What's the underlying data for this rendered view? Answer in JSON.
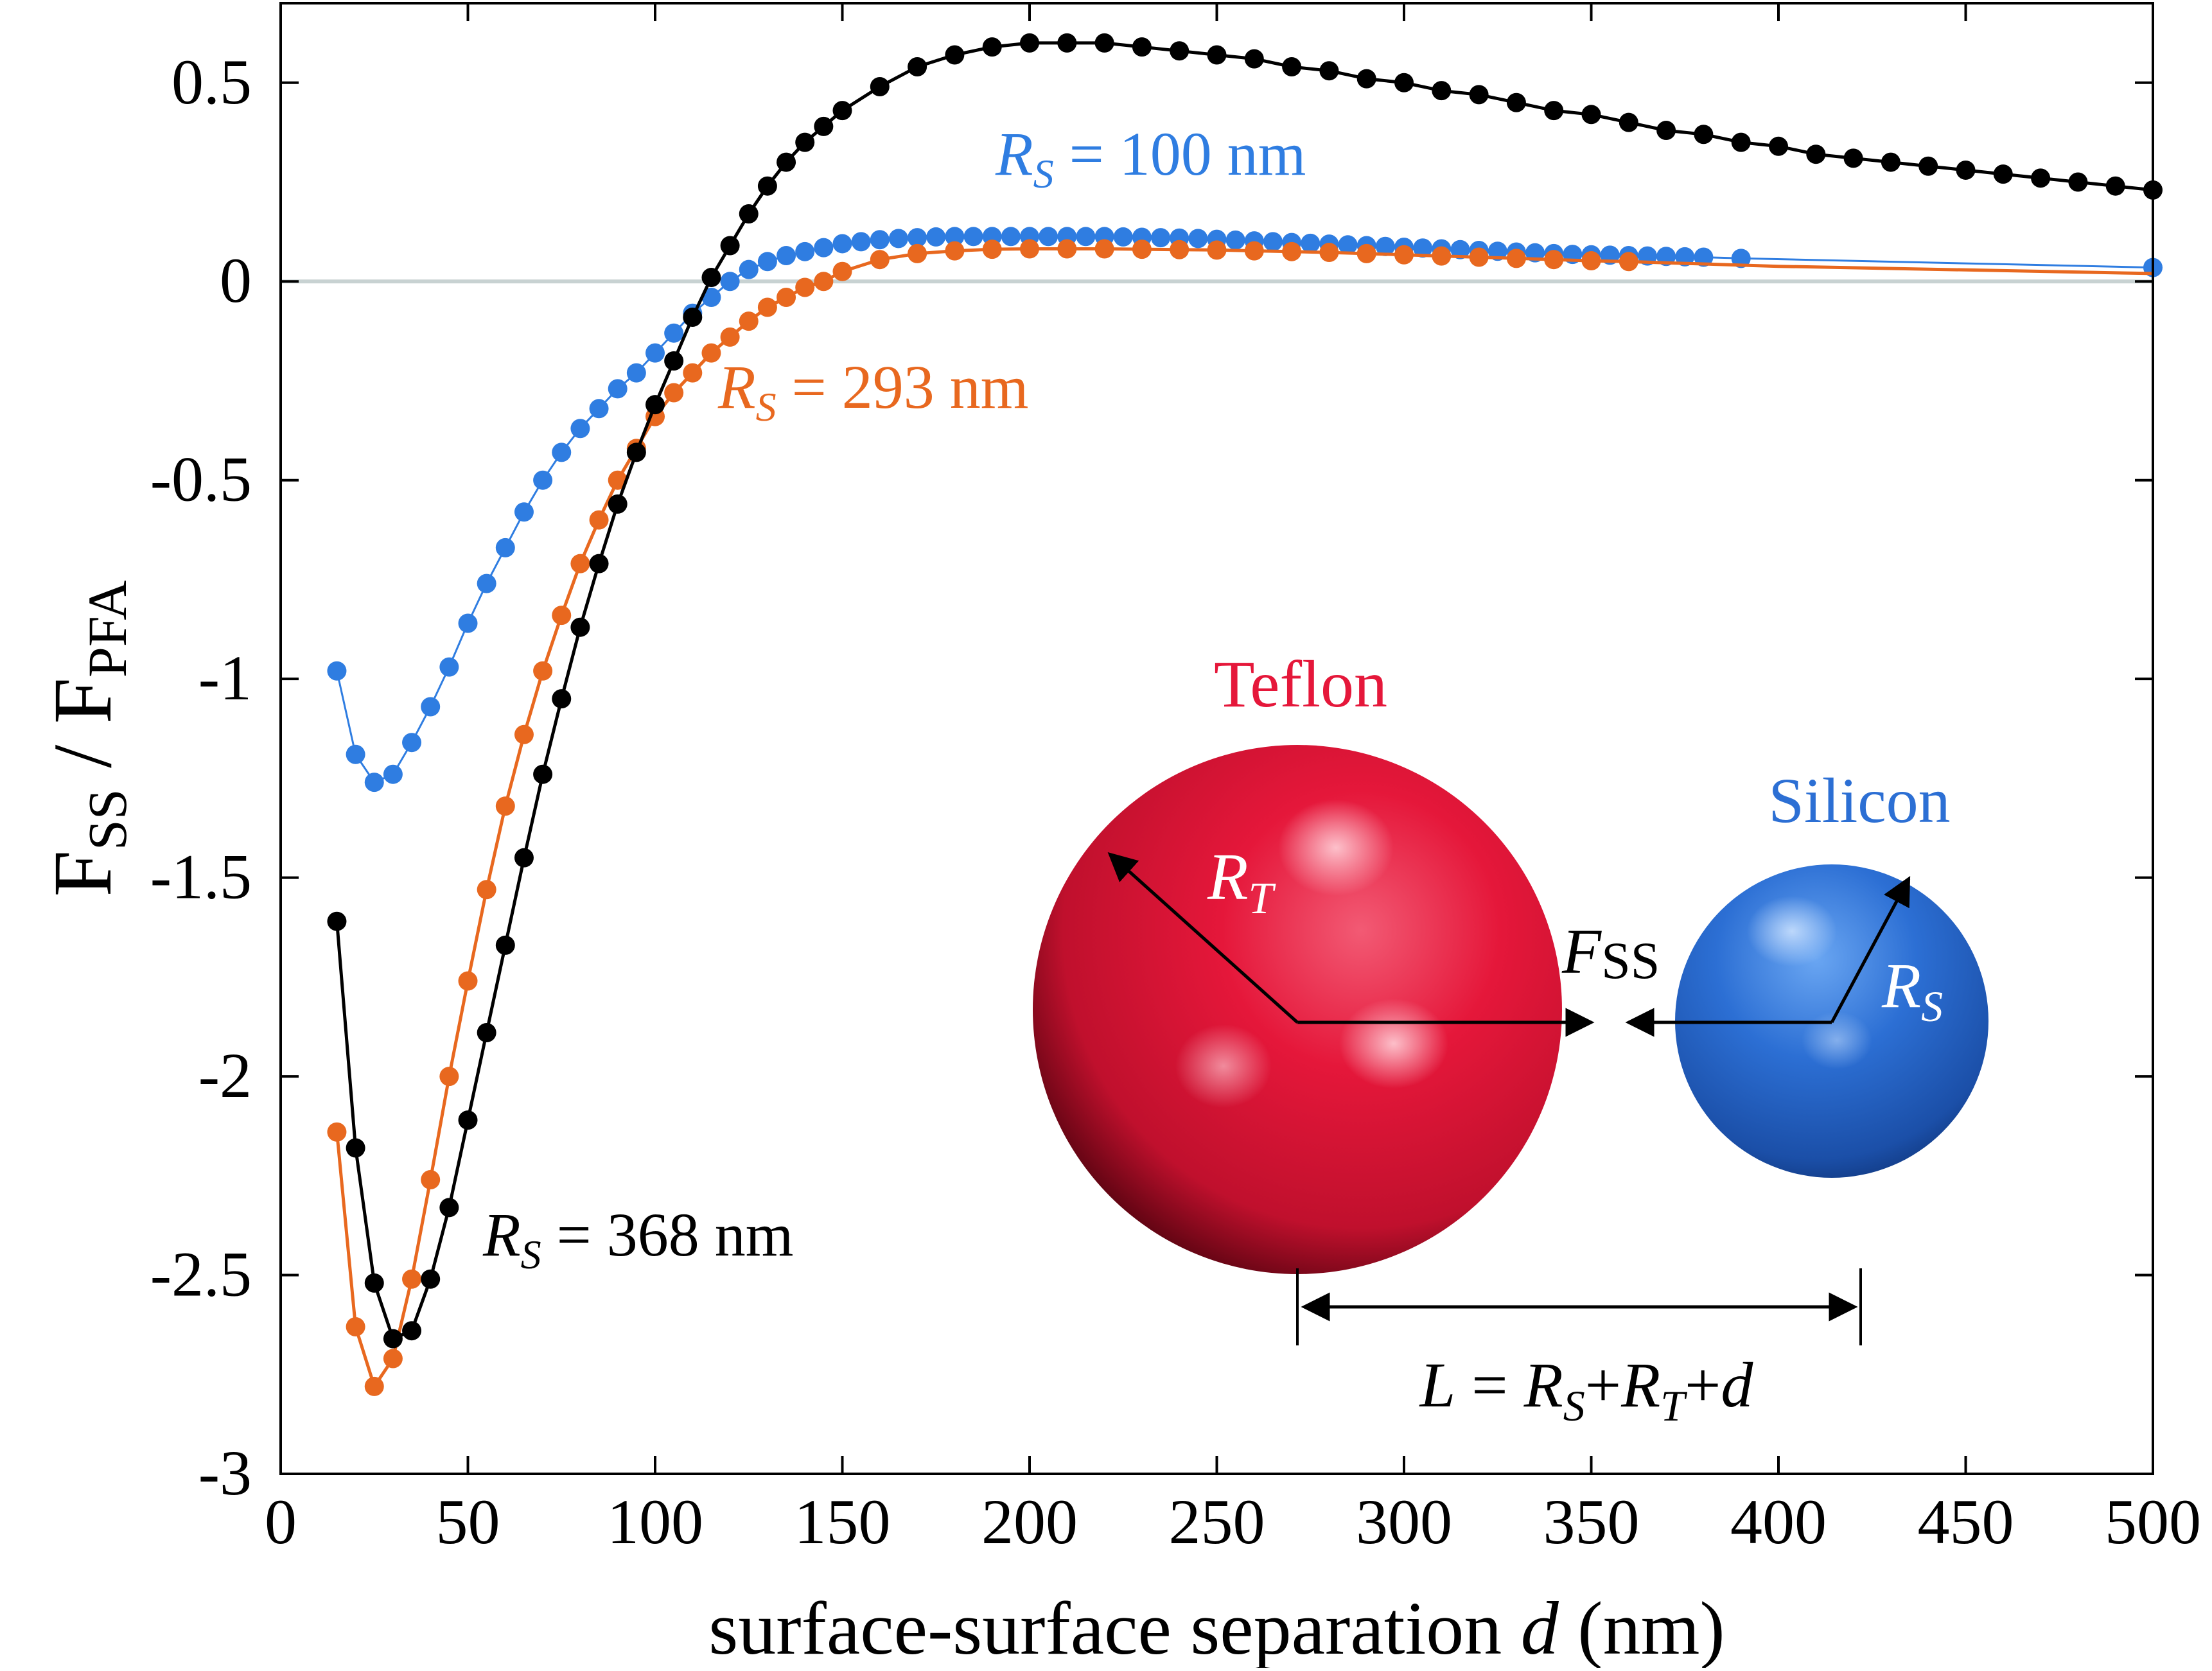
{
  "chart_data": {
    "type": "line",
    "xlabel_main": "surface-surface separation ",
    "xlabel_italic": "d",
    "xlabel_unit": " (nm)",
    "ylabel": {
      "f1": "F",
      "s1": "SS",
      "slash": " / ",
      "f2": "F",
      "s2": "PFA"
    },
    "xlim": [
      0,
      500
    ],
    "ylim": [
      -3,
      0.7
    ],
    "xticks": [
      0,
      50,
      100,
      150,
      200,
      250,
      300,
      350,
      400,
      450,
      500
    ],
    "xtick_labels": [
      "0",
      "50",
      "100",
      "150",
      "200",
      "250",
      "300",
      "350",
      "400",
      "450",
      "500"
    ],
    "yticks": [
      0.5,
      0,
      -0.5,
      -1,
      -1.5,
      -2,
      -2.5,
      -3
    ],
    "ytick_labels": [
      "0.5",
      "0",
      "-0.5",
      "-1",
      "-1.5",
      "-2",
      "-2.5",
      "-3"
    ],
    "zero_line_color": "#c8d2d2",
    "series": [
      {
        "name": "R_S = 100 nm",
        "label": {
          "R": "R",
          "sub": "S",
          "rest": " = 100 nm"
        },
        "color": "#2f7de1",
        "x": [
          15,
          20,
          25,
          30,
          35,
          40,
          45,
          50,
          55,
          60,
          65,
          70,
          75,
          80,
          85,
          90,
          95,
          100,
          105,
          110,
          115,
          120,
          125,
          130,
          135,
          140,
          145,
          150,
          155,
          160,
          165,
          170,
          175,
          180,
          185,
          190,
          195,
          200,
          205,
          210,
          215,
          220,
          225,
          230,
          235,
          240,
          245,
          250,
          255,
          260,
          265,
          270,
          275,
          280,
          285,
          290,
          295,
          300,
          305,
          310,
          315,
          320,
          325,
          330,
          335,
          340,
          345,
          350,
          355,
          360,
          365,
          370,
          375,
          380,
          390,
          500
        ],
        "y": [
          -0.98,
          -1.19,
          -1.26,
          -1.24,
          -1.16,
          -1.07,
          -0.97,
          -0.86,
          -0.76,
          -0.67,
          -0.58,
          -0.5,
          -0.43,
          -0.37,
          -0.32,
          -0.27,
          -0.23,
          -0.18,
          -0.13,
          -0.08,
          -0.04,
          0.0,
          0.03,
          0.05,
          0.065,
          0.075,
          0.085,
          0.095,
          0.1,
          0.105,
          0.108,
          0.11,
          0.112,
          0.113,
          0.113,
          0.113,
          0.113,
          0.113,
          0.113,
          0.113,
          0.113,
          0.113,
          0.112,
          0.111,
          0.11,
          0.109,
          0.108,
          0.106,
          0.104,
          0.102,
          0.1,
          0.098,
          0.096,
          0.094,
          0.092,
          0.09,
          0.088,
          0.086,
          0.084,
          0.082,
          0.08,
          0.078,
          0.076,
          0.074,
          0.072,
          0.07,
          0.068,
          0.067,
          0.066,
          0.065,
          0.064,
          0.063,
          0.062,
          0.061,
          0.058,
          0.035
        ],
        "markers_x": [
          15,
          20,
          25,
          30,
          35,
          40,
          45,
          50,
          55,
          60,
          65,
          70,
          75,
          80,
          85,
          90,
          95,
          100,
          105,
          110,
          115,
          120,
          125,
          130,
          135,
          140,
          145,
          150,
          155,
          160,
          165,
          170,
          175,
          180,
          185,
          190,
          195,
          200,
          205,
          210,
          215,
          220,
          225,
          230,
          235,
          240,
          245,
          250,
          255,
          260,
          265,
          270,
          275,
          280,
          285,
          290,
          295,
          300,
          305,
          310,
          315,
          320,
          325,
          330,
          335,
          340,
          345,
          350,
          355,
          360,
          365,
          370,
          375,
          380,
          390,
          500
        ]
      },
      {
        "name": "R_S = 293 nm",
        "label": {
          "R": "R",
          "sub": "S",
          "rest": " = 293 nm"
        },
        "color": "#e8681f",
        "x": [
          15,
          20,
          25,
          30,
          35,
          40,
          45,
          50,
          55,
          60,
          65,
          70,
          75,
          80,
          85,
          90,
          95,
          100,
          105,
          110,
          115,
          120,
          125,
          130,
          135,
          140,
          145,
          150,
          160,
          170,
          180,
          190,
          200,
          210,
          220,
          230,
          240,
          250,
          260,
          270,
          280,
          290,
          300,
          310,
          320,
          330,
          340,
          350,
          360,
          370,
          380,
          390,
          400,
          500
        ],
        "y": [
          -2.14,
          -2.63,
          -2.78,
          -2.71,
          -2.51,
          -2.26,
          -2.0,
          -1.76,
          -1.53,
          -1.32,
          -1.14,
          -0.98,
          -0.84,
          -0.71,
          -0.6,
          -0.5,
          -0.42,
          -0.34,
          -0.28,
          -0.23,
          -0.18,
          -0.14,
          -0.1,
          -0.065,
          -0.04,
          -0.015,
          0.0,
          0.025,
          0.055,
          0.07,
          0.077,
          0.081,
          0.082,
          0.082,
          0.082,
          0.081,
          0.08,
          0.079,
          0.077,
          0.075,
          0.073,
          0.07,
          0.067,
          0.064,
          0.061,
          0.058,
          0.055,
          0.052,
          0.05,
          0.047,
          0.044,
          0.041,
          0.038,
          0.02
        ],
        "markers_x": [
          15,
          20,
          25,
          30,
          35,
          40,
          45,
          50,
          55,
          60,
          65,
          70,
          75,
          80,
          85,
          90,
          95,
          100,
          105,
          110,
          115,
          120,
          125,
          130,
          135,
          140,
          145,
          150,
          160,
          170,
          180,
          190,
          200,
          210,
          220,
          230,
          240,
          250,
          260,
          270,
          280,
          290,
          300,
          310,
          320,
          330,
          340,
          350,
          360
        ]
      },
      {
        "name": "R_S = 368 nm",
        "label": {
          "R": "R",
          "sub": "S",
          "rest": " = 368 nm"
        },
        "color": "#000000",
        "x": [
          15,
          20,
          25,
          30,
          35,
          40,
          45,
          50,
          55,
          60,
          65,
          70,
          75,
          80,
          85,
          90,
          95,
          100,
          105,
          110,
          115,
          120,
          125,
          130,
          135,
          140,
          145,
          150,
          160,
          170,
          180,
          190,
          200,
          210,
          220,
          230,
          240,
          250,
          260,
          270,
          280,
          290,
          300,
          310,
          320,
          330,
          340,
          350,
          360,
          370,
          380,
          390,
          400,
          410,
          420,
          430,
          440,
          450,
          460,
          470,
          480,
          490,
          500
        ],
        "y": [
          -1.61,
          -2.18,
          -2.52,
          -2.66,
          -2.64,
          -2.51,
          -2.33,
          -2.11,
          -1.89,
          -1.67,
          -1.45,
          -1.24,
          -1.05,
          -0.87,
          -0.71,
          -0.56,
          -0.43,
          -0.31,
          -0.2,
          -0.09,
          0.01,
          0.09,
          0.17,
          0.24,
          0.3,
          0.35,
          0.39,
          0.43,
          0.49,
          0.54,
          0.57,
          0.59,
          0.6,
          0.6,
          0.6,
          0.59,
          0.58,
          0.57,
          0.56,
          0.54,
          0.53,
          0.51,
          0.5,
          0.48,
          0.47,
          0.45,
          0.43,
          0.42,
          0.4,
          0.38,
          0.37,
          0.35,
          0.34,
          0.32,
          0.31,
          0.3,
          0.29,
          0.28,
          0.27,
          0.26,
          0.25,
          0.24,
          0.23
        ],
        "markers_x": [
          15,
          20,
          25,
          30,
          35,
          40,
          45,
          50,
          55,
          60,
          65,
          70,
          75,
          80,
          85,
          90,
          95,
          100,
          105,
          110,
          115,
          120,
          125,
          130,
          135,
          140,
          145,
          150,
          160,
          170,
          180,
          190,
          200,
          210,
          220,
          230,
          240,
          250,
          260,
          270,
          280,
          290,
          300,
          310,
          320,
          330,
          340,
          350,
          360,
          370,
          380,
          390,
          400,
          410,
          420,
          430,
          440,
          450,
          460,
          470,
          480,
          490,
          500
        ]
      }
    ],
    "inset": {
      "teflon_label": "Teflon",
      "silicon_label": "Silicon",
      "teflon_color": "#e5173a",
      "silicon_color": "#2c6fd4",
      "radius_t": {
        "R": "R",
        "sub": "T"
      },
      "radius_s": {
        "R": "R",
        "sub": "S"
      },
      "force": {
        "F": "F",
        "sub": "SS"
      },
      "distance": {
        "L": "L",
        "eq": " = ",
        "RS": "R",
        "S": "S",
        "plus1": "+",
        "RT": "R",
        "T": "T",
        "plus2": "+",
        "d": "d"
      }
    }
  }
}
